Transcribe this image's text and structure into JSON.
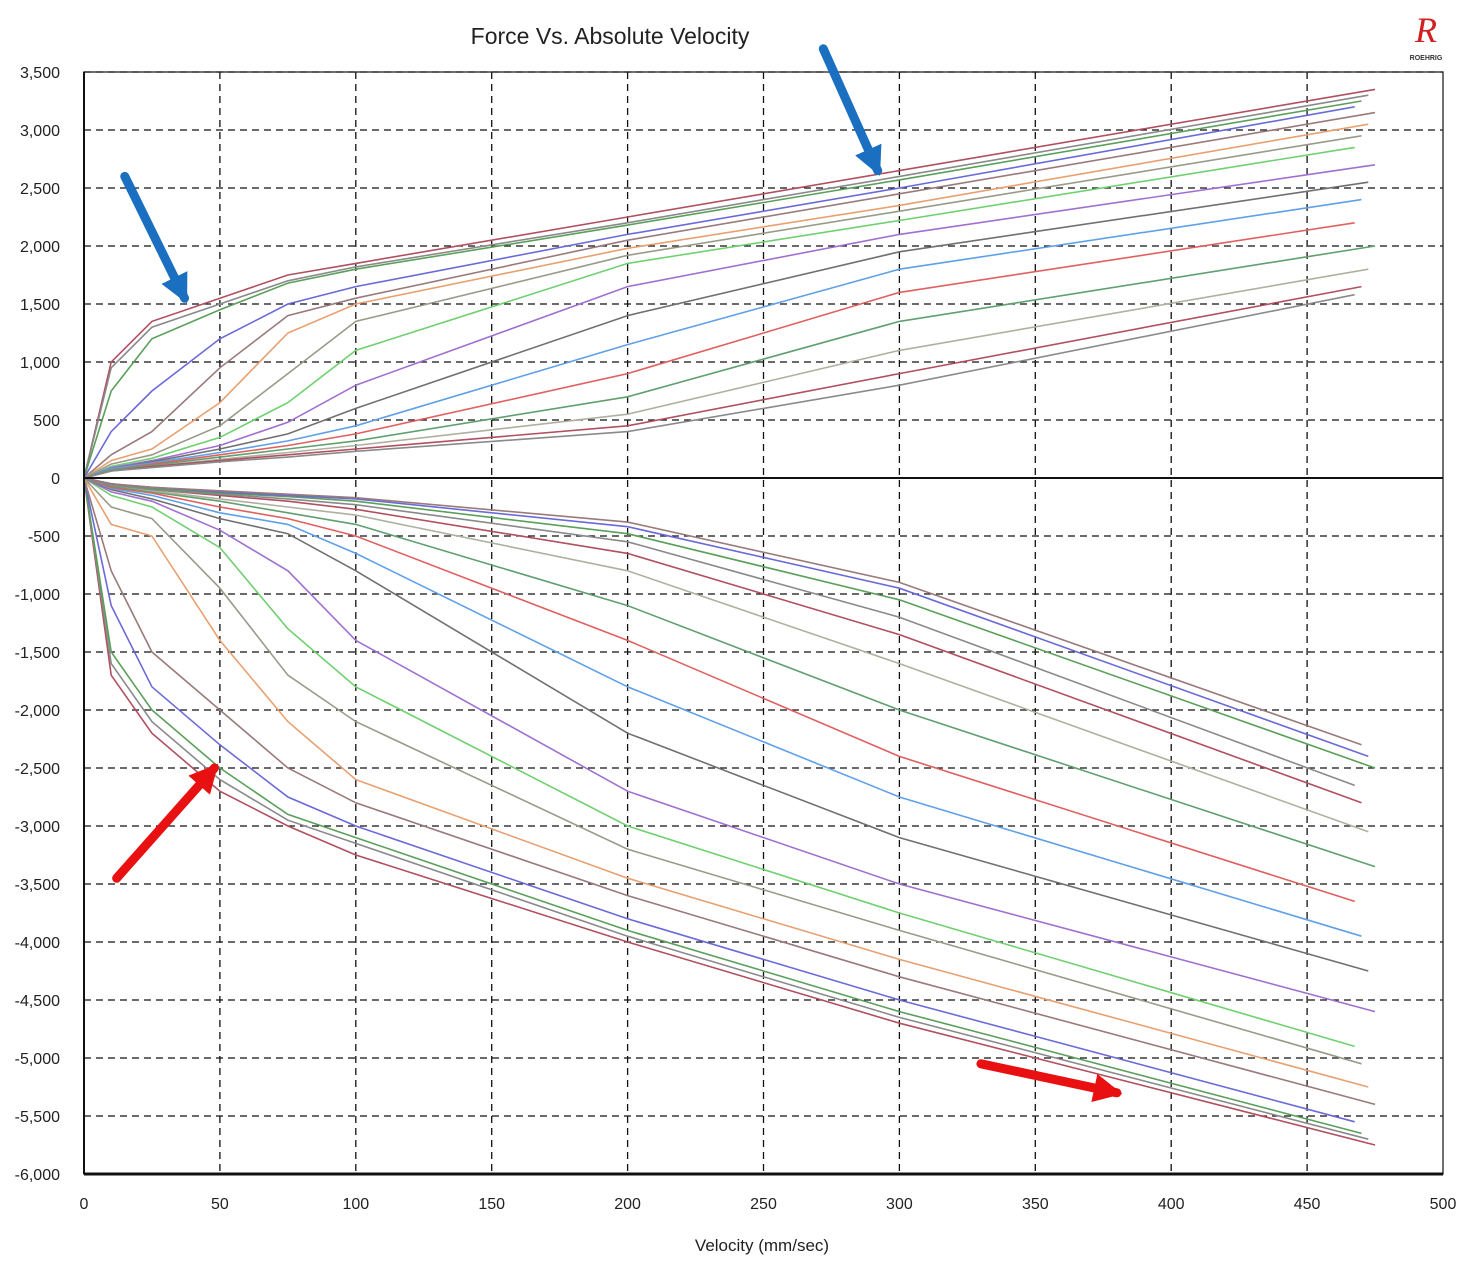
{
  "chart_data": {
    "type": "line",
    "title": "Force Vs. Absolute Velocity",
    "xlabel": "Velocity (mm/sec)",
    "ylabel": "",
    "xlim": [
      0,
      500
    ],
    "ylim": [
      -6000,
      3500
    ],
    "x_ticks": [
      "0",
      "50",
      "100",
      "150",
      "200",
      "250",
      "300",
      "350",
      "400",
      "450",
      "500"
    ],
    "y_ticks": [
      "3,500",
      "3,000",
      "2,500",
      "2,000",
      "1,500",
      "1,000",
      "500",
      "0",
      "-500",
      "-1,000",
      "-1,500",
      "-2,000",
      "-2,500",
      "-3,000",
      "-3,500",
      "-4,000",
      "-4,500",
      "-5,000",
      "-5,500",
      "-6,000"
    ],
    "grid": true,
    "legend": "none",
    "logo_text": "ROEHRIG",
    "x": [
      0,
      10,
      25,
      50,
      75,
      100,
      200,
      300,
      475
    ],
    "series_colors": [
      "#b05060",
      "#8a8a8a",
      "#5aa05a",
      "#6a6ad8",
      "#9a7a7a",
      "#e8a070",
      "#9a9a8a",
      "#70d070",
      "#a070d0",
      "#707070",
      "#60a0e8",
      "#e06060",
      "#60a070",
      "#b0b0a0"
    ],
    "compression_series": [
      {
        "values": [
          0,
          1000,
          1350,
          1550,
          1750,
          1850,
          2250,
          2650,
          3350
        ]
      },
      {
        "values": [
          0,
          950,
          1300,
          1500,
          1700,
          1820,
          2200,
          2600,
          3300
        ]
      },
      {
        "values": [
          0,
          750,
          1200,
          1450,
          1680,
          1800,
          2180,
          2570,
          3250
        ]
      },
      {
        "values": [
          0,
          400,
          750,
          1200,
          1500,
          1650,
          2100,
          2500,
          3200
        ]
      },
      {
        "values": [
          0,
          200,
          400,
          950,
          1400,
          1550,
          2050,
          2450,
          3150
        ]
      },
      {
        "values": [
          0,
          150,
          250,
          650,
          1250,
          1500,
          1980,
          2350,
          3050
        ]
      },
      {
        "values": [
          0,
          120,
          200,
          450,
          900,
          1350,
          1920,
          2300,
          2950
        ]
      },
      {
        "values": [
          0,
          100,
          170,
          350,
          650,
          1100,
          1850,
          2220,
          2850
        ]
      },
      {
        "values": [
          0,
          90,
          150,
          280,
          480,
          800,
          1650,
          2100,
          2700
        ]
      },
      {
        "values": [
          0,
          80,
          140,
          250,
          380,
          600,
          1400,
          1950,
          2550
        ]
      },
      {
        "values": [
          0,
          80,
          130,
          220,
          320,
          450,
          1150,
          1800,
          2400
        ]
      },
      {
        "values": [
          0,
          70,
          120,
          200,
          280,
          380,
          900,
          1600,
          2200
        ]
      },
      {
        "values": [
          0,
          70,
          110,
          180,
          250,
          320,
          700,
          1350,
          2000
        ]
      },
      {
        "values": [
          0,
          60,
          100,
          160,
          220,
          280,
          550,
          1100,
          1800
        ]
      },
      {
        "values": [
          0,
          60,
          100,
          150,
          200,
          250,
          450,
          900,
          1650
        ]
      },
      {
        "values": [
          0,
          60,
          90,
          140,
          180,
          230,
          400,
          800,
          1580
        ]
      }
    ],
    "rebound_series": [
      {
        "values": [
          0,
          -1700,
          -2200,
          -2700,
          -3000,
          -3250,
          -4000,
          -4700,
          -5750
        ]
      },
      {
        "values": [
          0,
          -1600,
          -2100,
          -2600,
          -2950,
          -3150,
          -3950,
          -4650,
          -5700
        ]
      },
      {
        "values": [
          0,
          -1500,
          -2000,
          -2500,
          -2900,
          -3100,
          -3900,
          -4600,
          -5650
        ]
      },
      {
        "values": [
          0,
          -1100,
          -1800,
          -2300,
          -2750,
          -3000,
          -3800,
          -4500,
          -5550
        ]
      },
      {
        "values": [
          0,
          -800,
          -1500,
          -2000,
          -2500,
          -2800,
          -3600,
          -4300,
          -5400
        ]
      },
      {
        "values": [
          0,
          -400,
          -500,
          -1400,
          -2100,
          -2600,
          -3450,
          -4150,
          -5250
        ]
      },
      {
        "values": [
          0,
          -250,
          -350,
          -950,
          -1700,
          -2100,
          -3200,
          -3900,
          -5050
        ]
      },
      {
        "values": [
          0,
          -150,
          -250,
          -600,
          -1300,
          -1800,
          -3000,
          -3750,
          -4900
        ]
      },
      {
        "values": [
          0,
          -120,
          -200,
          -450,
          -800,
          -1400,
          -2700,
          -3500,
          -4600
        ]
      },
      {
        "values": [
          0,
          -100,
          -180,
          -350,
          -480,
          -800,
          -2200,
          -3100,
          -4250
        ]
      },
      {
        "values": [
          0,
          -90,
          -150,
          -300,
          -400,
          -650,
          -1800,
          -2750,
          -3950
        ]
      },
      {
        "values": [
          0,
          -80,
          -130,
          -250,
          -350,
          -500,
          -1400,
          -2400,
          -3650
        ]
      },
      {
        "values": [
          0,
          -70,
          -120,
          -200,
          -300,
          -400,
          -1100,
          -2000,
          -3350
        ]
      },
      {
        "values": [
          0,
          -60,
          -110,
          -180,
          -250,
          -320,
          -800,
          -1600,
          -3050
        ]
      },
      {
        "values": [
          0,
          -60,
          -100,
          -150,
          -200,
          -270,
          -650,
          -1350,
          -2800
        ]
      },
      {
        "values": [
          0,
          -60,
          -100,
          -140,
          -180,
          -230,
          -550,
          -1200,
          -2650
        ]
      },
      {
        "values": [
          0,
          -50,
          -90,
          -130,
          -160,
          -200,
          -480,
          -1050,
          -2500
        ]
      },
      {
        "values": [
          0,
          -50,
          -80,
          -120,
          -150,
          -180,
          -420,
          -950,
          -2400
        ]
      },
      {
        "values": [
          0,
          -50,
          -80,
          -110,
          -140,
          -170,
          -380,
          -900,
          -2300
        ]
      }
    ],
    "annotations": [
      {
        "type": "arrow",
        "color": "#1a6fc0",
        "from": [
          15,
          2600
        ],
        "to": [
          37,
          1550
        ]
      },
      {
        "type": "arrow",
        "color": "#1a6fc0",
        "from": [
          272,
          3700
        ],
        "to": [
          292,
          2650
        ]
      },
      {
        "type": "arrow",
        "color": "#e81010",
        "from": [
          12,
          -3450
        ],
        "to": [
          48,
          -2500
        ]
      },
      {
        "type": "arrow",
        "color": "#e81010",
        "from": [
          330,
          -5050
        ],
        "to": [
          380,
          -5300
        ]
      }
    ]
  }
}
